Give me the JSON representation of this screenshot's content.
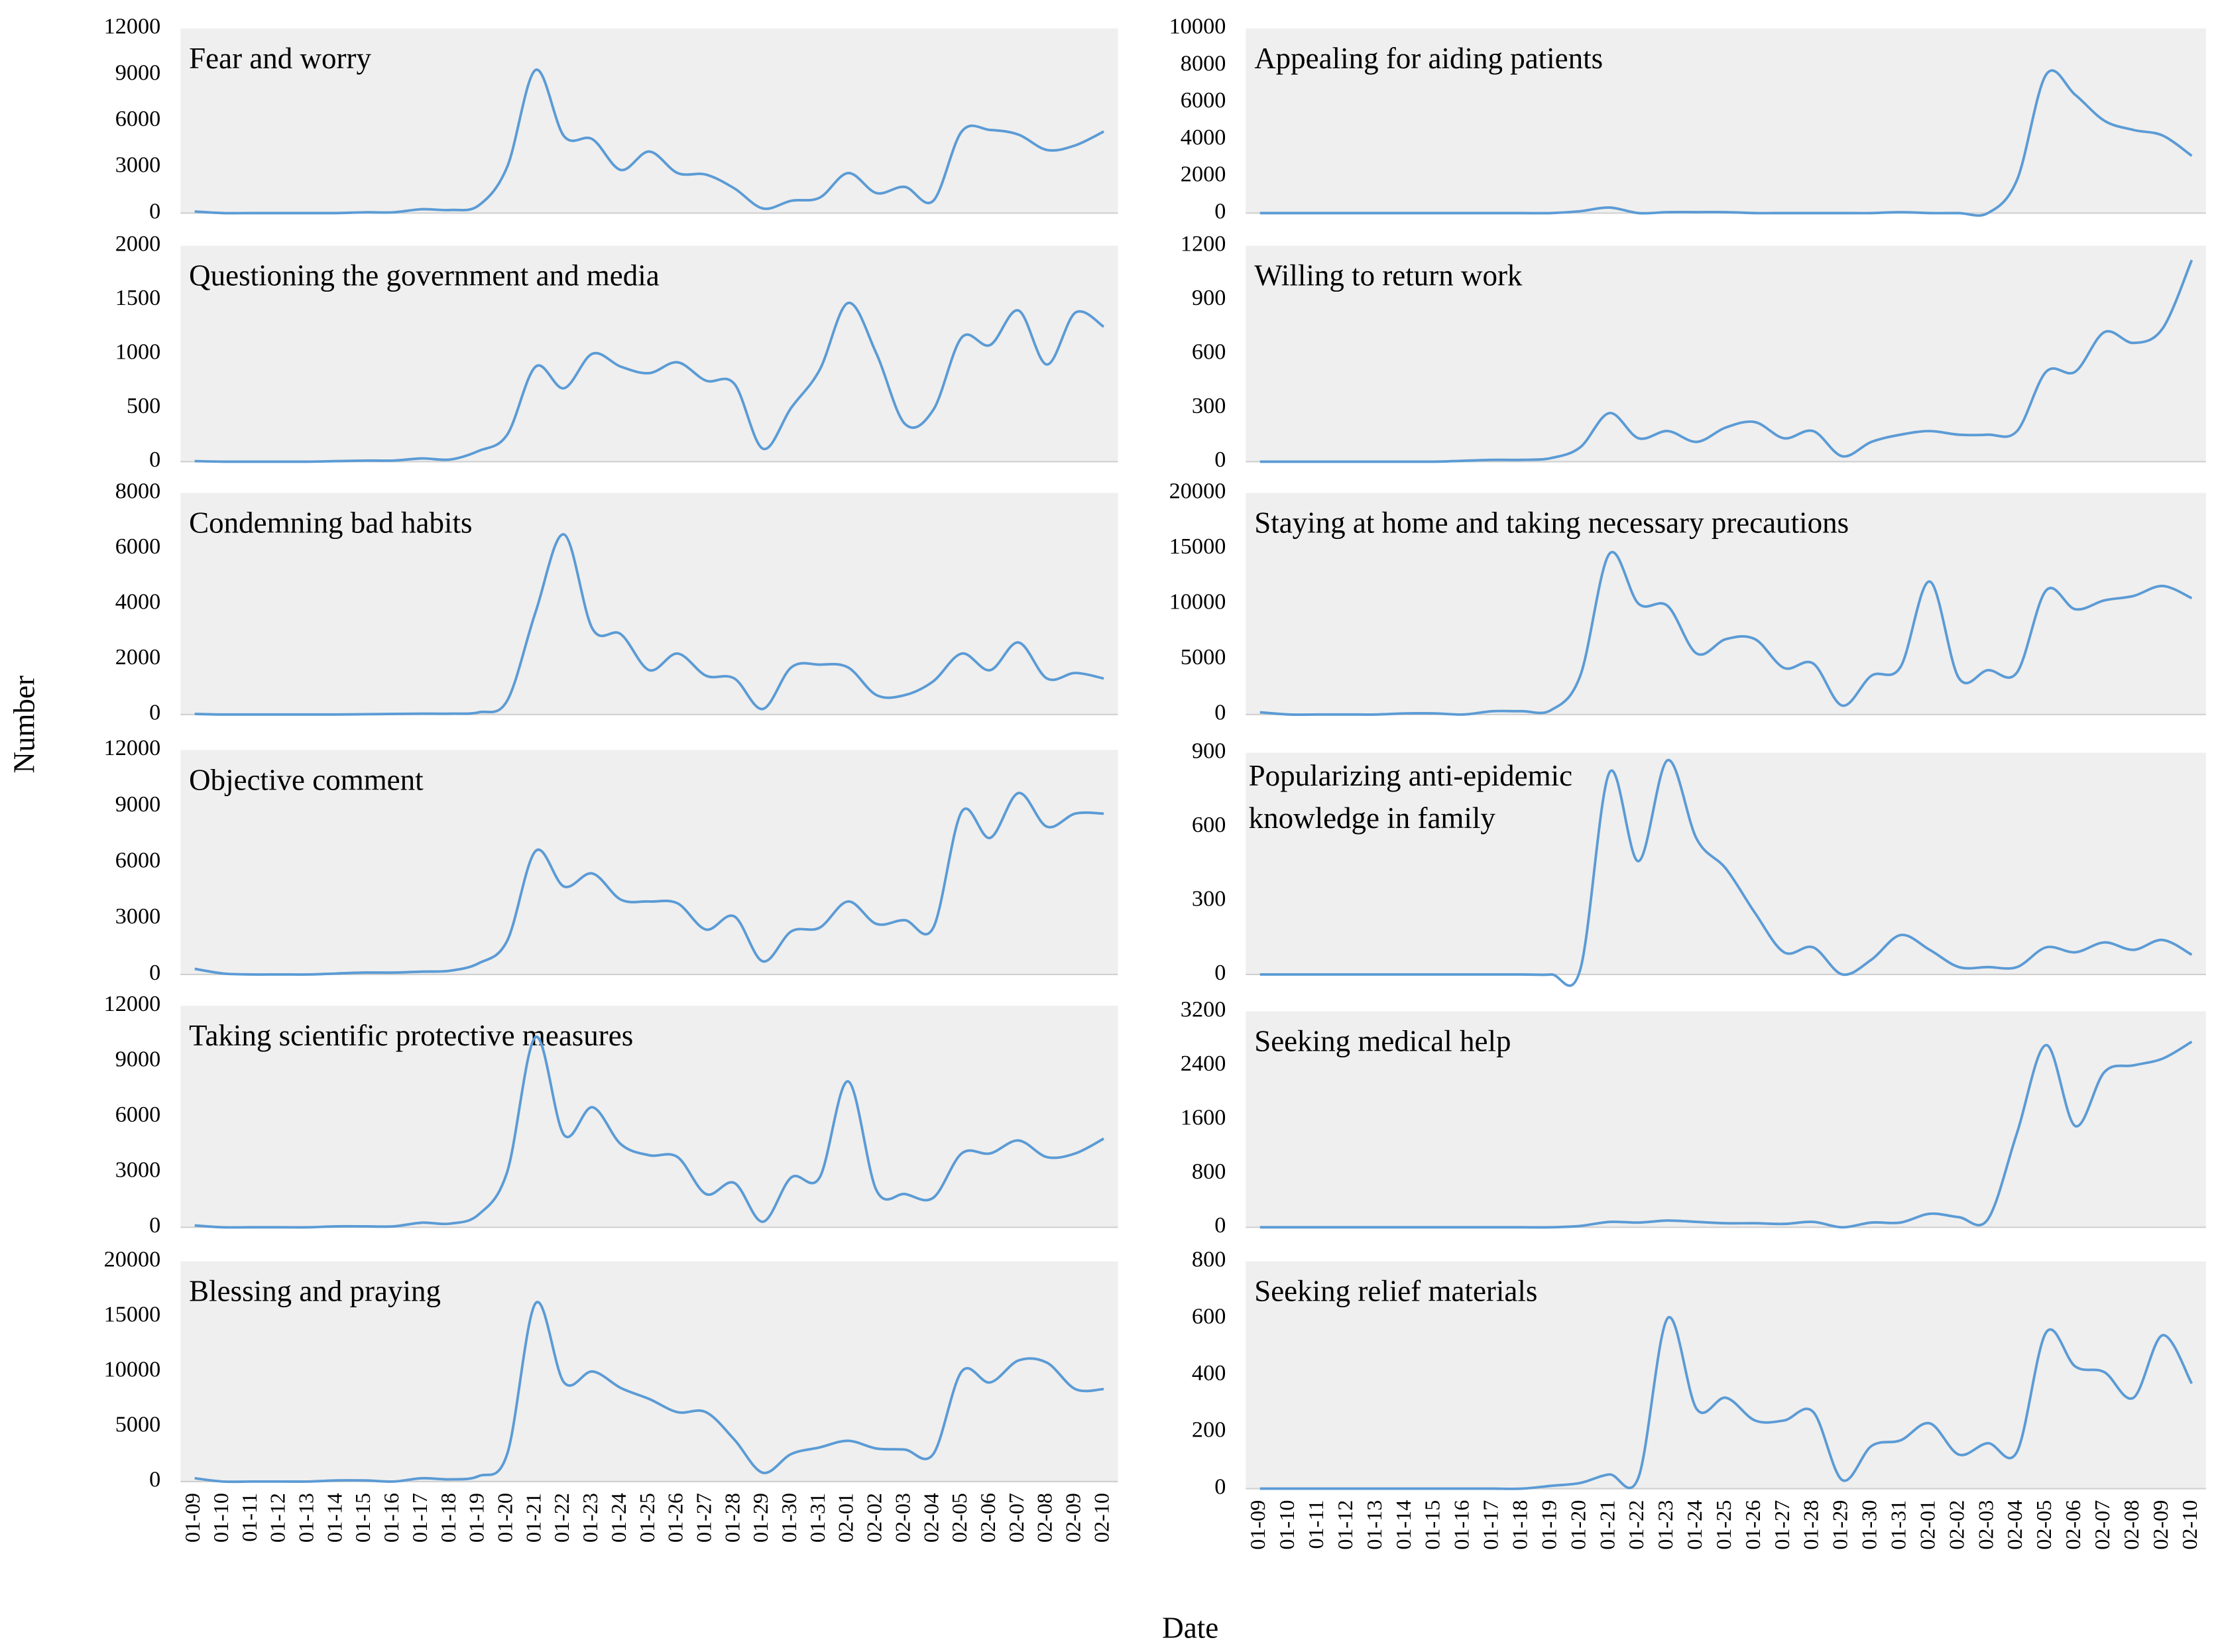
{
  "ylabel": "Number",
  "xlabel": "Date",
  "categories": [
    "01-09",
    "01-10",
    "01-11",
    "01-12",
    "01-13",
    "01-14",
    "01-15",
    "01-16",
    "01-17",
    "01-18",
    "01-19",
    "01-20",
    "01-21",
    "01-22",
    "01-23",
    "01-24",
    "01-25",
    "01-26",
    "01-27",
    "01-28",
    "01-29",
    "01-30",
    "01-31",
    "02-01",
    "02-02",
    "02-03",
    "02-04",
    "02-05",
    "02-06",
    "02-07",
    "02-08",
    "02-09",
    "02-10"
  ],
  "chart_data": [
    {
      "type": "line",
      "title": "Fear and worry",
      "color": "#5b9bd5",
      "ylim": [
        0,
        12000
      ],
      "yticks": [
        0,
        3000,
        6000,
        9000,
        12000
      ],
      "values": [
        100,
        0,
        0,
        0,
        0,
        0,
        50,
        50,
        250,
        200,
        500,
        3000,
        9300,
        5000,
        4800,
        2800,
        4000,
        2600,
        2500,
        1600,
        300,
        800,
        1000,
        2600,
        1300,
        1700,
        800,
        5300,
        5400,
        5100,
        4100,
        4400,
        5300
      ]
    },
    {
      "type": "line",
      "title": "Questioning the government and media",
      "color": "#5b9bd5",
      "ylim": [
        0,
        2000
      ],
      "yticks": [
        0,
        500,
        1000,
        1500,
        2000
      ],
      "values": [
        5,
        0,
        0,
        0,
        0,
        5,
        10,
        10,
        30,
        20,
        100,
        250,
        880,
        680,
        1000,
        880,
        820,
        920,
        750,
        720,
        120,
        500,
        850,
        1470,
        1000,
        350,
        480,
        1150,
        1080,
        1400,
        900,
        1380,
        1250
      ]
    },
    {
      "type": "line",
      "title": "Condemning bad habits",
      "color": "#5b9bd5",
      "ylim": [
        0,
        8000
      ],
      "yticks": [
        0,
        2000,
        4000,
        6000,
        8000
      ],
      "values": [
        20,
        0,
        0,
        0,
        0,
        0,
        10,
        20,
        30,
        30,
        80,
        500,
        3700,
        6500,
        3100,
        2900,
        1600,
        2200,
        1400,
        1300,
        200,
        1700,
        1800,
        1700,
        700,
        700,
        1200,
        2200,
        1600,
        2600,
        1300,
        1500,
        1300
      ]
    },
    {
      "type": "line",
      "title": "Objective comment",
      "color": "#5b9bd5",
      "ylim": [
        0,
        12000
      ],
      "yticks": [
        0,
        3000,
        6000,
        9000,
        12000
      ],
      "values": [
        300,
        50,
        0,
        0,
        0,
        50,
        100,
        100,
        150,
        200,
        600,
        1800,
        6600,
        4700,
        5400,
        4000,
        3900,
        3800,
        2400,
        3100,
        700,
        2300,
        2500,
        3900,
        2700,
        2900,
        2500,
        8700,
        7300,
        9700,
        7900,
        8600,
        8600
      ]
    },
    {
      "type": "line",
      "title": "Taking scientific protective measures",
      "color": "#5b9bd5",
      "ylim": [
        0,
        12000
      ],
      "yticks": [
        0,
        3000,
        6000,
        9000,
        12000
      ],
      "values": [
        100,
        0,
        0,
        0,
        0,
        50,
        50,
        50,
        250,
        200,
        700,
        3000,
        10300,
        5000,
        6500,
        4500,
        3900,
        3800,
        1800,
        2400,
        300,
        2700,
        2700,
        7900,
        2000,
        1800,
        1600,
        4000,
        4000,
        4700,
        3800,
        4000,
        4800
      ]
    },
    {
      "type": "line",
      "title": "Blessing and praying",
      "color": "#5b9bd5",
      "ylim": [
        0,
        20000
      ],
      "yticks": [
        0,
        5000,
        10000,
        15000,
        20000
      ],
      "values": [
        300,
        0,
        0,
        0,
        0,
        100,
        100,
        0,
        300,
        200,
        500,
        2500,
        16200,
        9000,
        10000,
        8500,
        7500,
        6300,
        6300,
        3800,
        800,
        2500,
        3100,
        3700,
        3000,
        2900,
        2500,
        10000,
        9000,
        11000,
        10800,
        8400,
        8400
      ]
    },
    {
      "type": "line",
      "title": "Appealing for aiding patients",
      "color": "#5b9bd5",
      "ylim": [
        0,
        10000
      ],
      "yticks": [
        0,
        2000,
        4000,
        6000,
        8000,
        10000
      ],
      "values": [
        0,
        0,
        0,
        0,
        0,
        0,
        0,
        0,
        0,
        0,
        0,
        100,
        300,
        0,
        50,
        50,
        50,
        0,
        0,
        0,
        0,
        0,
        50,
        0,
        0,
        0,
        1800,
        7500,
        6400,
        5000,
        4500,
        4200,
        3100
      ]
    },
    {
      "type": "line",
      "title": "Willing to return work",
      "color": "#5b9bd5",
      "ylim": [
        0,
        1200
      ],
      "yticks": [
        0,
        300,
        600,
        900,
        1200
      ],
      "values": [
        0,
        0,
        0,
        0,
        0,
        0,
        0,
        5,
        10,
        10,
        20,
        80,
        270,
        130,
        170,
        110,
        190,
        220,
        130,
        170,
        30,
        110,
        150,
        170,
        150,
        150,
        170,
        500,
        500,
        720,
        660,
        740,
        1120
      ]
    },
    {
      "type": "line",
      "title": "Staying at home and taking necessary precautions",
      "color": "#5b9bd5",
      "ylim": [
        0,
        20000
      ],
      "yticks": [
        0,
        5000,
        10000,
        15000,
        20000
      ],
      "values": [
        200,
        0,
        0,
        0,
        0,
        100,
        100,
        0,
        300,
        300,
        400,
        3500,
        14500,
        10000,
        9800,
        5500,
        6800,
        6800,
        4200,
        4600,
        800,
        3500,
        4300,
        12000,
        3300,
        4000,
        3800,
        11200,
        9500,
        10300,
        10700,
        11600,
        10500
      ]
    },
    {
      "type": "line",
      "title": [
        "Popularizing anti-epidemic",
        "knowledge in family"
      ],
      "color": "#5b9bd5",
      "ylim": [
        0,
        900
      ],
      "yticks": [
        0,
        300,
        600,
        900
      ],
      "values": [
        0,
        0,
        0,
        0,
        0,
        0,
        0,
        0,
        0,
        0,
        0,
        20,
        820,
        460,
        870,
        550,
        430,
        250,
        90,
        110,
        0,
        60,
        160,
        100,
        30,
        30,
        30,
        110,
        90,
        130,
        100,
        140,
        80
      ]
    },
    {
      "type": "line",
      "title": "Seeking medical help",
      "color": "#5b9bd5",
      "ylim": [
        0,
        3200
      ],
      "yticks": [
        0,
        800,
        1600,
        2400,
        3200
      ],
      "values": [
        0,
        0,
        0,
        0,
        0,
        0,
        0,
        0,
        0,
        0,
        0,
        20,
        80,
        70,
        100,
        80,
        60,
        60,
        50,
        80,
        0,
        70,
        70,
        200,
        150,
        120,
        1400,
        2700,
        1500,
        2300,
        2400,
        2500,
        2750
      ]
    },
    {
      "type": "line",
      "title": "Seeking relief materials",
      "color": "#5b9bd5",
      "ylim": [
        0,
        800
      ],
      "yticks": [
        0,
        200,
        400,
        600,
        800
      ],
      "values": [
        0,
        0,
        0,
        0,
        0,
        0,
        0,
        0,
        0,
        0,
        10,
        20,
        50,
        40,
        600,
        280,
        320,
        240,
        240,
        270,
        30,
        150,
        170,
        230,
        120,
        160,
        130,
        550,
        430,
        410,
        320,
        540,
        370
      ]
    }
  ]
}
